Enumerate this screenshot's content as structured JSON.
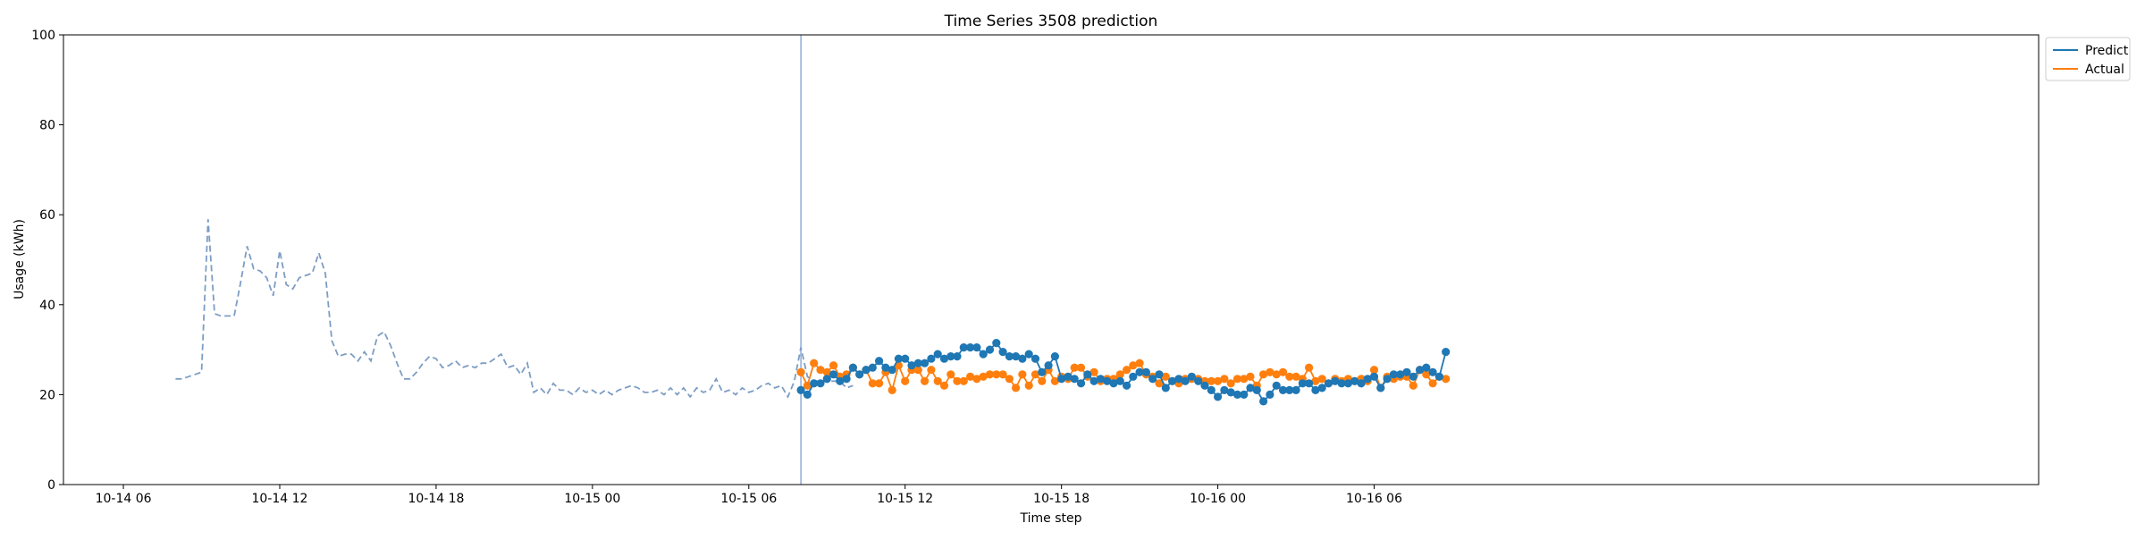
{
  "chart_data": {
    "type": "line",
    "title": "Time Series 3508 prediction",
    "xlabel": "Time step",
    "ylabel": "Usage (kWh)",
    "ylim": [
      0,
      100
    ],
    "xlim_hours": [
      -2.3,
      73.5
    ],
    "x_unit": "hours after 10-14 06:00",
    "yticks": [
      0,
      20,
      40,
      60,
      80,
      100
    ],
    "xticks": [
      {
        "hours": 0,
        "label": "10-14 06"
      },
      {
        "hours": 6,
        "label": "10-14 12"
      },
      {
        "hours": 12,
        "label": "10-14 18"
      },
      {
        "hours": 18,
        "label": "10-15 00"
      },
      {
        "hours": 24,
        "label": "10-15 06"
      },
      {
        "hours": 30,
        "label": "10-15 12"
      },
      {
        "hours": 36,
        "label": "10-15 18"
      },
      {
        "hours": 42,
        "label": "10-16 00"
      },
      {
        "hours": 48,
        "label": "10-16 06"
      }
    ],
    "grid": false,
    "legend_position": "top-right",
    "forecast_start_hours": 26,
    "colors": {
      "history": "#7d9dc4",
      "predict": "#1f77b4",
      "actual": "#ff7f0e",
      "divider": "#7f9dd0"
    },
    "history": {
      "x_start_hours": 2,
      "step_hours": 0.25,
      "values": [
        23.5,
        23.5,
        24,
        24.5,
        25,
        59,
        38,
        37.5,
        37.5,
        37.5,
        45,
        53,
        48,
        47.5,
        46,
        42,
        52,
        44.5,
        43.5,
        46,
        46.5,
        47,
        51.5,
        47,
        32,
        28.5,
        29,
        29,
        27.5,
        29.5,
        27.5,
        33,
        34,
        31,
        27,
        23.5,
        23.5,
        25,
        27,
        28.5,
        28,
        26,
        26.5,
        27.5,
        26,
        26.5,
        26,
        27,
        27,
        28,
        29,
        26,
        26.5,
        24.5,
        27,
        20.5,
        21.5,
        20,
        22.5,
        21,
        21,
        20,
        21.5,
        20.5,
        21,
        20,
        21,
        20,
        21,
        21.5,
        22,
        21.5,
        20.5,
        20.5,
        21,
        20,
        21.5,
        20,
        21.5,
        19.5,
        21.5,
        20.5,
        21,
        23.5,
        20.5,
        21,
        20,
        21.5,
        20.5,
        21,
        22,
        22.5,
        21.5,
        22,
        19.5,
        23,
        30.5,
        24,
        23,
        23,
        23,
        23,
        23,
        21.5,
        22
      ]
    },
    "forecast": {
      "x_start_hours": 26,
      "step_hours": 0.25,
      "series": [
        {
          "name": "Predict",
          "values": [
            21,
            20,
            22.5,
            22.5,
            23.5,
            24.5,
            23,
            23.5,
            26,
            24.5,
            25.5,
            26,
            27.5,
            26,
            25.5,
            28,
            28,
            26.5,
            27,
            27,
            28,
            29,
            28,
            28.5,
            28.5,
            30.5,
            30.5,
            30.5,
            29,
            30,
            31.5,
            29.5,
            28.5,
            28.5,
            28,
            29,
            28,
            25,
            26.5,
            28.5,
            23.5,
            24,
            23.5,
            22.5,
            24.5,
            23,
            23.5,
            23,
            22.5,
            23,
            22,
            24,
            25,
            25,
            23.5,
            24.5,
            21.5,
            23,
            23.5,
            23,
            24,
            23,
            22,
            21,
            19.5,
            21,
            20.5,
            20,
            20,
            21.5,
            21,
            18.5,
            20,
            22,
            21,
            21,
            21,
            22.5,
            22.5,
            21,
            21.5,
            22.5,
            23,
            22.5,
            22.5,
            23,
            22.5,
            23.5,
            24,
            21.5,
            23.5,
            24.5,
            24.5,
            25,
            24,
            25.5,
            26,
            25,
            24,
            29.5
          ]
        },
        {
          "name": "Actual",
          "values": [
            25,
            22,
            27,
            25.5,
            25,
            26.5,
            24,
            24.5,
            26,
            24.5,
            25.5,
            22.5,
            22.5,
            25,
            21,
            26.5,
            23,
            25.5,
            25.5,
            23,
            25.5,
            23,
            22,
            24.5,
            23,
            23,
            24,
            23.5,
            24,
            24.5,
            24.5,
            24.5,
            23.5,
            21.5,
            24.5,
            22,
            24.5,
            23,
            25.5,
            23,
            24,
            23.5,
            26,
            26,
            24,
            25,
            23,
            23.5,
            23.5,
            24.5,
            25.5,
            26.5,
            27,
            24.5,
            24,
            22.5,
            24,
            23,
            22.5,
            23.5,
            23.5,
            23.5,
            23,
            23,
            23,
            23.5,
            22.5,
            23.5,
            23.5,
            24,
            22,
            24.5,
            25,
            24.5,
            25,
            24,
            24,
            23.5,
            26,
            23,
            23.5,
            22.5,
            23.5,
            23,
            23.5,
            23,
            23.5,
            23,
            25.5,
            21.5,
            24,
            23.5,
            24,
            24,
            22,
            25.5,
            24.5,
            22.5,
            24,
            23.5
          ]
        }
      ]
    }
  }
}
